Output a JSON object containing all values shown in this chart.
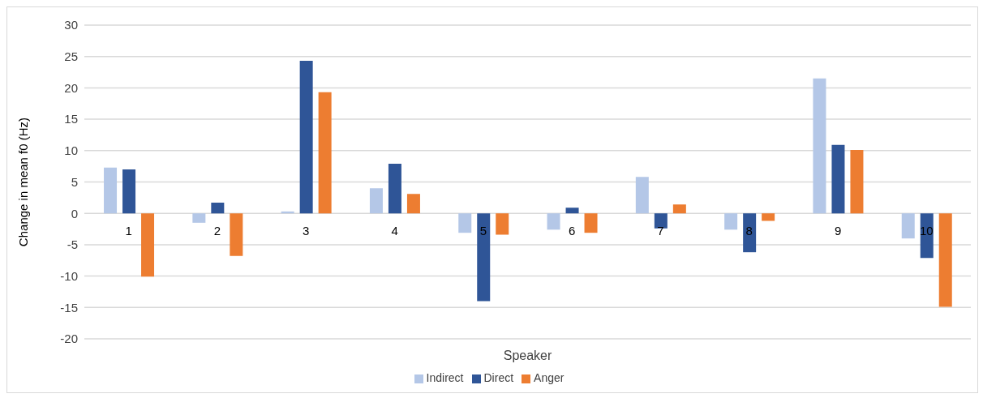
{
  "chart_data": {
    "type": "bar",
    "xlabel": "Speaker",
    "ylabel": "Change in mean f0 (Hz)",
    "categories": [
      "1",
      "2",
      "3",
      "4",
      "5",
      "6",
      "7",
      "8",
      "9",
      "10"
    ],
    "series": [
      {
        "name": "Indirect",
        "color": "#b4c7e7",
        "values": [
          7.3,
          -1.5,
          0.3,
          4.0,
          -3.1,
          -2.6,
          5.8,
          -2.6,
          21.5,
          -4.0
        ]
      },
      {
        "name": "Direct",
        "color": "#2f5597",
        "values": [
          7.0,
          1.7,
          24.3,
          7.9,
          -14.0,
          0.9,
          -2.4,
          -6.2,
          10.9,
          -7.1
        ]
      },
      {
        "name": "Anger",
        "color": "#ed7d31",
        "values": [
          -10.1,
          -6.8,
          19.3,
          3.1,
          -3.4,
          -3.1,
          1.4,
          -1.2,
          10.1,
          -14.9
        ]
      }
    ],
    "ylim": [
      -20,
      30
    ],
    "yticks": [
      -20,
      -15,
      -10,
      -5,
      0,
      5,
      10,
      15,
      20,
      25,
      30
    ],
    "grid": "y",
    "legend": "bottom"
  }
}
